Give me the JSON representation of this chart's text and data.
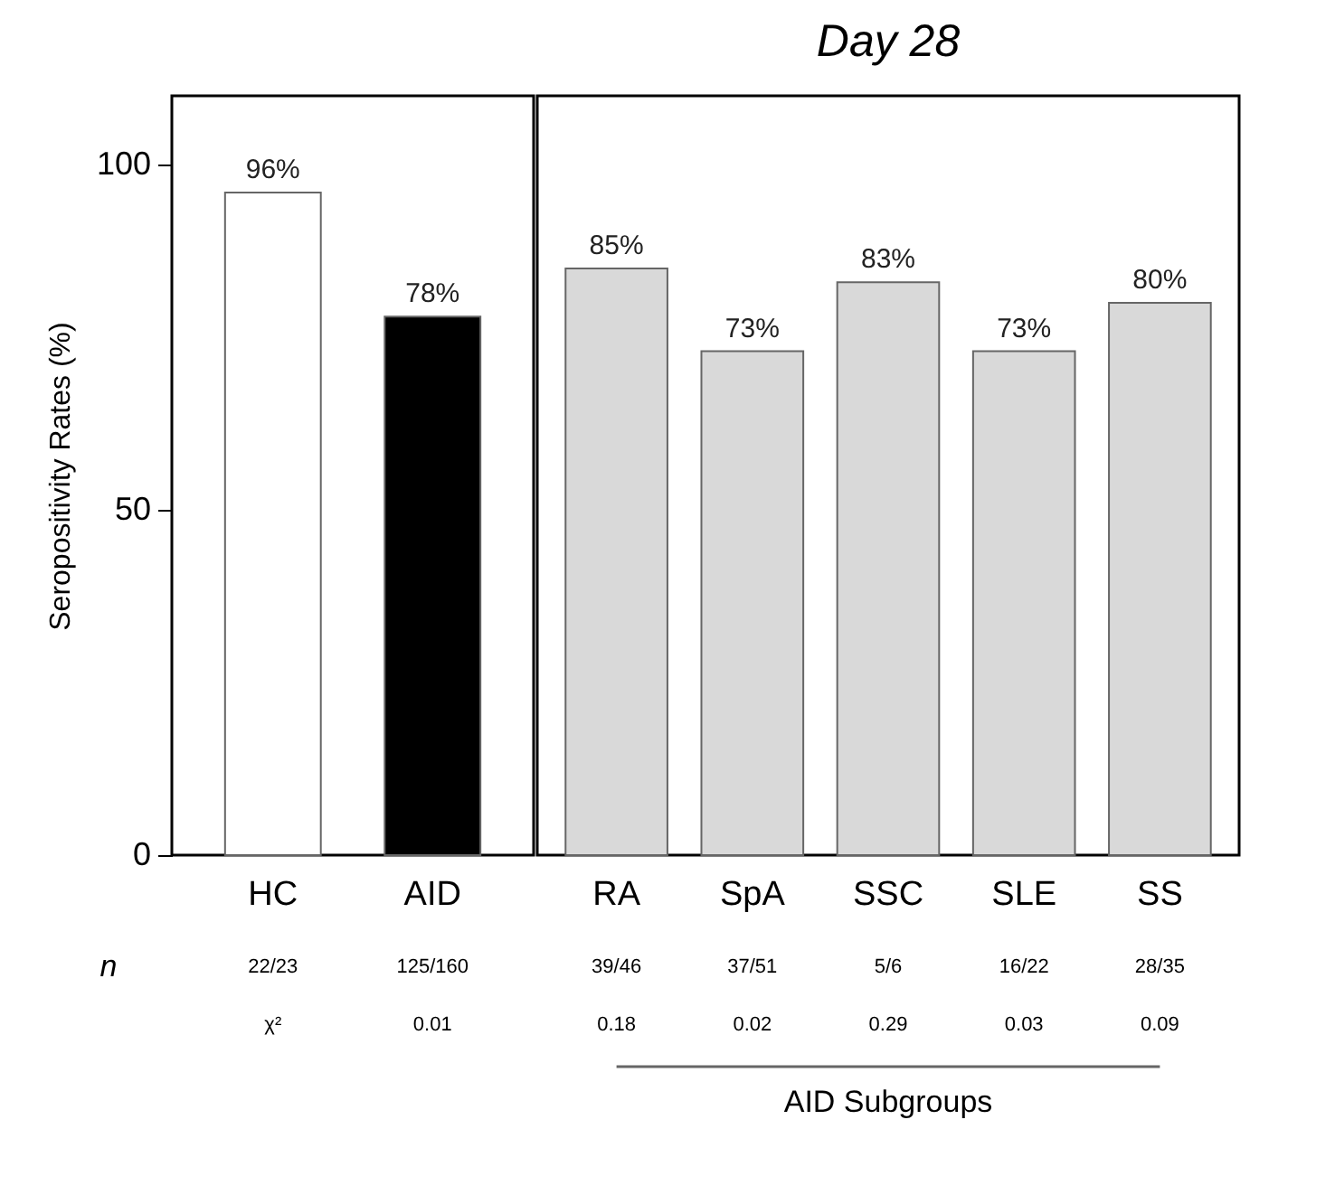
{
  "chart_data": [
    {
      "type": "bar",
      "ylabel": "Seropositivity  Rates (%)",
      "categories": [
        "HC",
        "AID"
      ],
      "values": [
        96,
        78
      ],
      "colors": [
        "#ffffff",
        "#000000"
      ],
      "value_labels": [
        "96%",
        "78%"
      ],
      "ylim": [
        0,
        110
      ],
      "yticks": [
        0,
        50,
        100
      ],
      "annotations": [
        "n",
        "22/23",
        "125/160",
        "χ²",
        "0.01"
      ]
    },
    {
      "type": "bar",
      "title": "Day 28",
      "categories": [
        "RA",
        "SpA",
        "SSC",
        "SLE",
        "SS"
      ],
      "values": [
        85,
        73,
        83,
        73,
        80
      ],
      "colors": [
        "#d9d9d9",
        "#d9d9d9",
        "#d9d9d9",
        "#d9d9d9",
        "#d9d9d9"
      ],
      "value_labels": [
        "85%",
        "73%",
        "83%",
        "73%",
        "80%"
      ],
      "ylim": [
        0,
        110
      ],
      "yticks": [
        0,
        50,
        100
      ],
      "tick_labels": "x",
      "annotations": [
        "39/46",
        "37/51",
        "5/6",
        "16/22",
        "28/35",
        "0.18",
        "0.02",
        "0.29",
        "0.03",
        "0.09",
        "AID Subgroups"
      ]
    }
  ]
}
